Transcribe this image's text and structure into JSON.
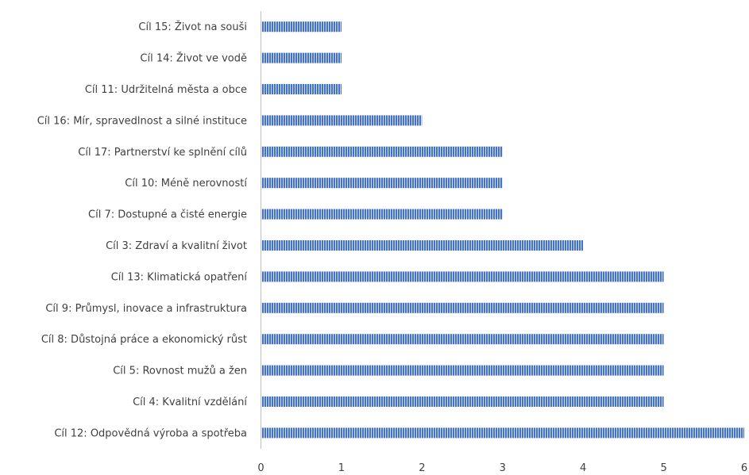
{
  "chart_data": {
    "type": "bar",
    "orientation": "horizontal",
    "categories": [
      "Cíl 15: Život na souši",
      "Cíl 14: Život ve vodě",
      "Cíl 11: Udržitelná města a obce",
      "Cíl 16: Mír, spravedlnost a silné instituce",
      "Cíl 17: Partnerství ke splnění cílů",
      "Cíl 10: Méně nerovností",
      "Cíl 7: Dostupné a čisté energie",
      "Cíl 3: Zdraví a kvalitní život",
      "Cíl 13: Klimatická opatření",
      "Cíl 9: Průmysl, inovace a infrastruktura",
      "Cíl 8: Důstojná práce a ekonomický růst",
      "Cíl 5: Rovnost mužů a žen",
      "Cíl 4: Kvalitní vzdělání",
      "Cíl 12: Odpovědná výroba a spotřeba"
    ],
    "values": [
      1,
      1,
      1,
      2,
      3,
      3,
      3,
      4,
      5,
      5,
      5,
      5,
      5,
      6
    ],
    "xticks": [
      "0",
      "1",
      "2",
      "3",
      "4",
      "5",
      "6"
    ],
    "xlim": [
      0,
      6
    ],
    "title": "",
    "xlabel": "",
    "ylabel": "",
    "grid": false,
    "legend": "none",
    "bar_color": "#4472C4",
    "bar_stripe_color": "#ffffff",
    "axis_color": "#bfbfbf",
    "label_color": "#404040"
  }
}
